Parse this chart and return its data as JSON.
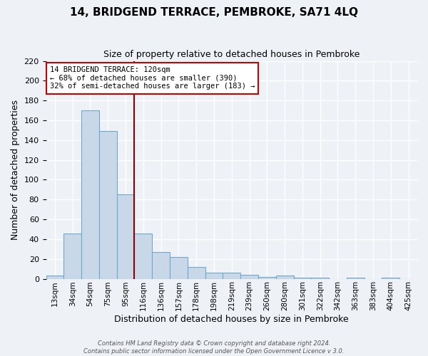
{
  "title": "14, BRIDGEND TERRACE, PEMBROKE, SA71 4LQ",
  "subtitle": "Size of property relative to detached houses in Pembroke",
  "xlabel": "Distribution of detached houses by size in Pembroke",
  "ylabel": "Number of detached properties",
  "bin_labels": [
    "13sqm",
    "34sqm",
    "54sqm",
    "75sqm",
    "95sqm",
    "116sqm",
    "136sqm",
    "157sqm",
    "178sqm",
    "198sqm",
    "219sqm",
    "239sqm",
    "260sqm",
    "280sqm",
    "301sqm",
    "322sqm",
    "342sqm",
    "363sqm",
    "383sqm",
    "404sqm",
    "425sqm"
  ],
  "bin_values": [
    3,
    46,
    170,
    149,
    85,
    46,
    27,
    22,
    12,
    6,
    6,
    4,
    2,
    3,
    1,
    1,
    0,
    1,
    0,
    1,
    0
  ],
  "bar_color": "#c8d8e8",
  "bar_edge_color": "#6fa8c8",
  "vline_color": "#8b0000",
  "vline_position": 4.5,
  "ylim": [
    0,
    220
  ],
  "yticks": [
    0,
    20,
    40,
    60,
    80,
    100,
    120,
    140,
    160,
    180,
    200,
    220
  ],
  "annotation_title": "14 BRIDGEND TERRACE: 120sqm",
  "annotation_line1": "← 68% of detached houses are smaller (390)",
  "annotation_line2": "32% of semi-detached houses are larger (183) →",
  "annotation_box_color": "#ffffff",
  "annotation_box_edge": "#cc0000",
  "footer1": "Contains HM Land Registry data © Crown copyright and database right 2024.",
  "footer2": "Contains public sector information licensed under the Open Government Licence v 3.0.",
  "background_color": "#eef2f7",
  "grid_color": "#ffffff"
}
